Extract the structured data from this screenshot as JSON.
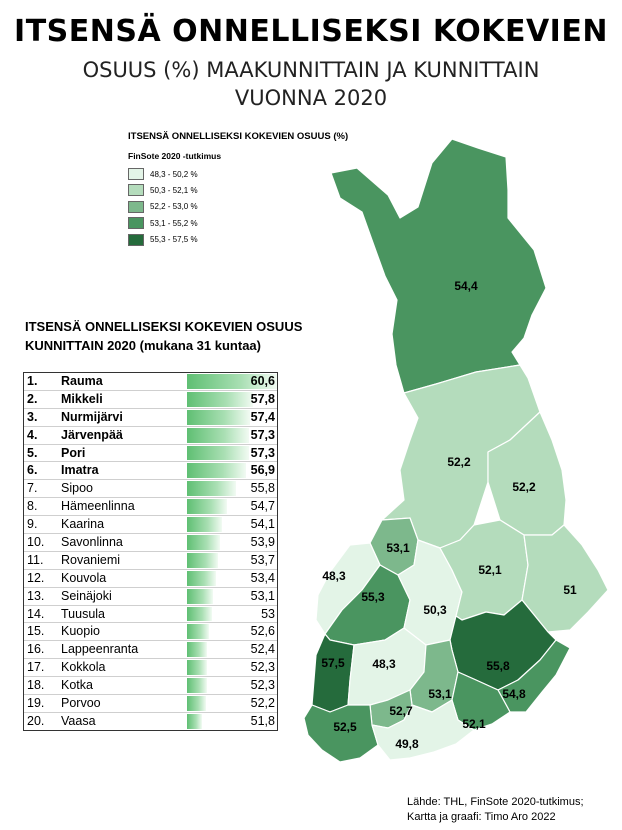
{
  "title": "ITSENSÄ ONNELLISEKSI KOKEVIEN",
  "subtitle_line1": "OSUUS (%) MAAKUNNITTAIN JA KUNNITTAIN",
  "subtitle_line2": "VUONNA 2020",
  "legend": {
    "title": "ITSENSÄ ONNELLISEKSI KOKEVIEN OSUUS (%)",
    "subtitle": "FinSote 2020 -tutkimus",
    "items": [
      {
        "label": "48,3 - 50,2 %",
        "color": "#e3f4e7"
      },
      {
        "label": "50,3 - 52,1 %",
        "color": "#b4dcbc"
      },
      {
        "label": "52,2 - 53,0 %",
        "color": "#7db88c"
      },
      {
        "label": "53,1 - 55,2 %",
        "color": "#4a9560"
      },
      {
        "label": "55,3 - 57,5 %",
        "color": "#256b3c"
      }
    ]
  },
  "table": {
    "title_line1": "ITSENSÄ ONNELLISEKSI KOKEVIEN OSUUS",
    "title_line2": "KUNNITTAIN 2020 (mukana 31 kuntaa)",
    "rows": [
      {
        "rank": "1.",
        "name": "Rauma",
        "value": "60,6",
        "num": 60.6,
        "bold": true
      },
      {
        "rank": "2.",
        "name": "Mikkeli",
        "value": "57,8",
        "num": 57.8,
        "bold": true
      },
      {
        "rank": "3.",
        "name": "Nurmijärvi",
        "value": "57,4",
        "num": 57.4,
        "bold": true
      },
      {
        "rank": "4.",
        "name": "Järvenpää",
        "value": "57,3",
        "num": 57.3,
        "bold": true
      },
      {
        "rank": "5.",
        "name": "Pori",
        "value": "57,3",
        "num": 57.3,
        "bold": true
      },
      {
        "rank": "6.",
        "name": "Imatra",
        "value": "56,9",
        "num": 56.9,
        "bold": true
      },
      {
        "rank": "7.",
        "name": "Sipoo",
        "value": "55,8",
        "num": 55.8,
        "bold": false
      },
      {
        "rank": "8.",
        "name": "Hämeenlinna",
        "value": "54,7",
        "num": 54.7,
        "bold": false
      },
      {
        "rank": "9.",
        "name": "Kaarina",
        "value": "54,1",
        "num": 54.1,
        "bold": false
      },
      {
        "rank": "10.",
        "name": "Savonlinna",
        "value": "53,9",
        "num": 53.9,
        "bold": false
      },
      {
        "rank": "11.",
        "name": "Rovaniemi",
        "value": "53,7",
        "num": 53.7,
        "bold": false
      },
      {
        "rank": "12.",
        "name": "Kouvola",
        "value": "53,4",
        "num": 53.4,
        "bold": false
      },
      {
        "rank": "13.",
        "name": "Seinäjoki",
        "value": "53,1",
        "num": 53.1,
        "bold": false
      },
      {
        "rank": "14.",
        "name": "Tuusula",
        "value": "53",
        "num": 53.0,
        "bold": false
      },
      {
        "rank": "15.",
        "name": "Kuopio",
        "value": "52,6",
        "num": 52.6,
        "bold": false
      },
      {
        "rank": "16.",
        "name": "Lappeenranta",
        "value": "52,4",
        "num": 52.4,
        "bold": false
      },
      {
        "rank": "17.",
        "name": "Kokkola",
        "value": "52,3",
        "num": 52.3,
        "bold": false
      },
      {
        "rank": "18.",
        "name": "Kotka",
        "value": "52,3",
        "num": 52.3,
        "bold": false
      },
      {
        "rank": "19.",
        "name": "Porvoo",
        "value": "52,2",
        "num": 52.2,
        "bold": false
      },
      {
        "rank": "20.",
        "name": "Vaasa",
        "value": "51,8",
        "num": 51.8,
        "bold": false
      }
    ]
  },
  "regions": [
    {
      "id": "lappi",
      "value": "54,4"
    },
    {
      "id": "pohjois-pohjanmaa",
      "value": "52,2"
    },
    {
      "id": "kainuu",
      "value": "52,2"
    },
    {
      "id": "keski-pohjanmaa",
      "value": "53,1"
    },
    {
      "id": "pohjanmaa",
      "value": "48,3"
    },
    {
      "id": "etela-pohjanmaa",
      "value": "55,3"
    },
    {
      "id": "keski-suomi",
      "value": "50,3"
    },
    {
      "id": "pohjois-savo",
      "value": "52,1"
    },
    {
      "id": "pohjois-karjala",
      "value": "51"
    },
    {
      "id": "satakunta",
      "value": "57,5"
    },
    {
      "id": "pirkanmaa",
      "value": "48,3"
    },
    {
      "id": "etela-savo",
      "value": "55,8"
    },
    {
      "id": "paijat-hame",
      "value": "53,1"
    },
    {
      "id": "etela-karjala",
      "value": "54,8"
    },
    {
      "id": "kanta-hame",
      "value": "52,7"
    },
    {
      "id": "varsinais-suomi",
      "value": "52,5"
    },
    {
      "id": "kymenlaakso",
      "value": "52,1"
    },
    {
      "id": "uusimaa",
      "value": "49,8"
    }
  ],
  "source_line1": "Lähde: THL, FinSote 2020-tutkimus;",
  "source_line2": "Kartta ja graafi: Timo Aro 2022"
}
